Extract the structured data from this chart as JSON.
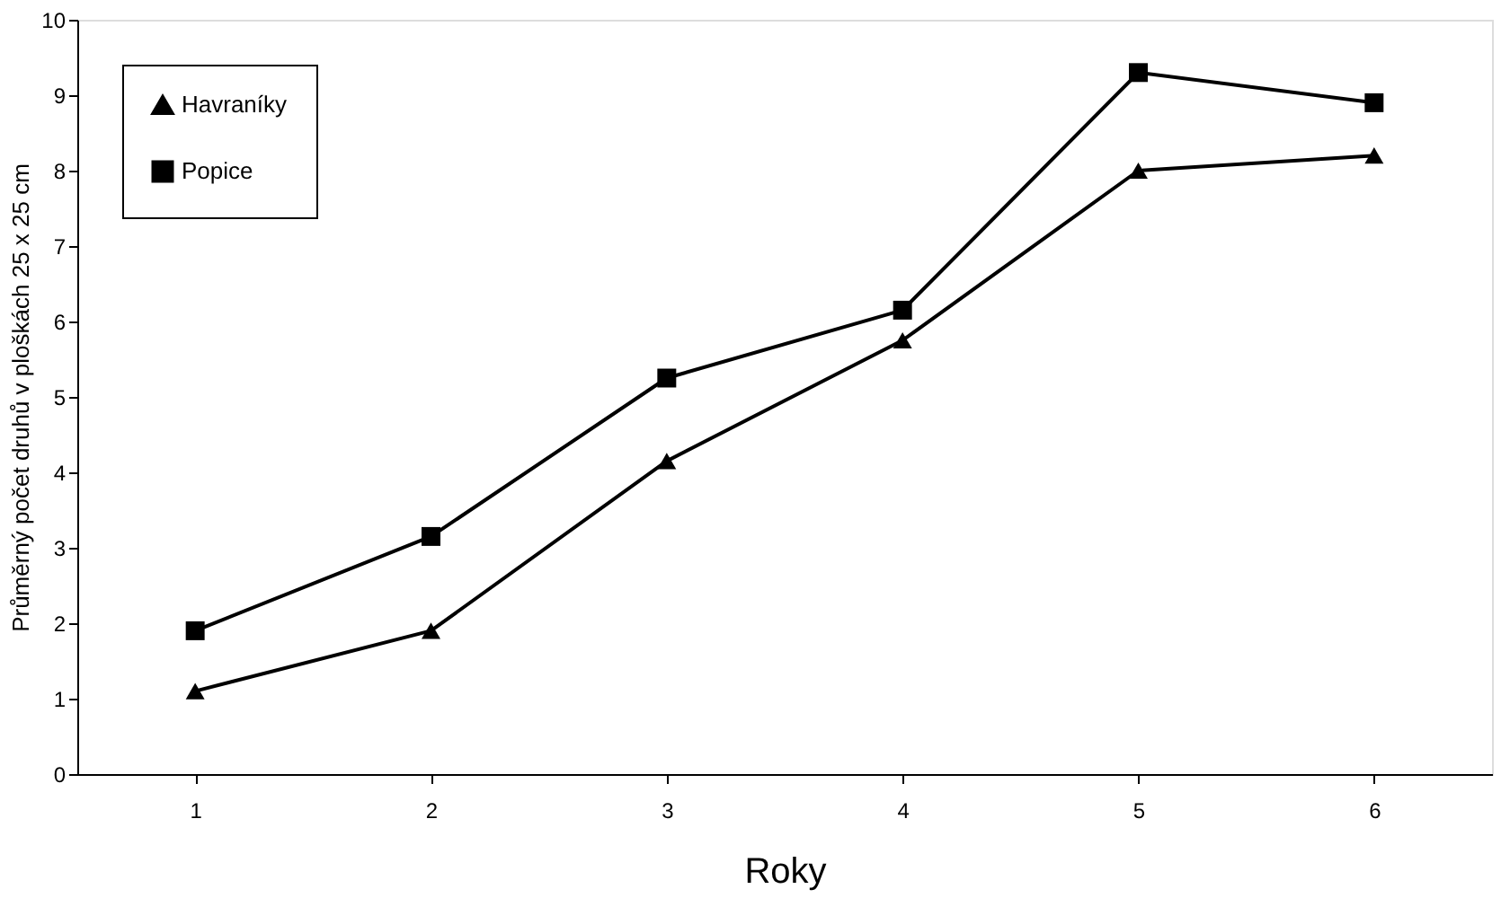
{
  "chart_data": {
    "type": "line",
    "xlabel": "Roky",
    "ylabel": "Průměrný počet druhů v ploškách 25 x 25 cm",
    "categories": [
      "1",
      "2",
      "3",
      "4",
      "5",
      "6"
    ],
    "series": [
      {
        "name": "Havraníky",
        "color": "#000000",
        "marker": "triangle",
        "values": [
          1.1,
          1.9,
          4.15,
          5.75,
          8.0,
          8.2
        ]
      },
      {
        "name": "Popice",
        "color": "#000000",
        "marker": "square",
        "values": [
          1.9,
          3.15,
          5.25,
          6.15,
          9.3,
          8.9
        ]
      }
    ],
    "ylim": [
      0,
      10
    ],
    "yticks": [
      0,
      1,
      2,
      3,
      4,
      5,
      6,
      7,
      8,
      9,
      10
    ],
    "grid": false,
    "legend": "top left",
    "line_style": "solid"
  }
}
